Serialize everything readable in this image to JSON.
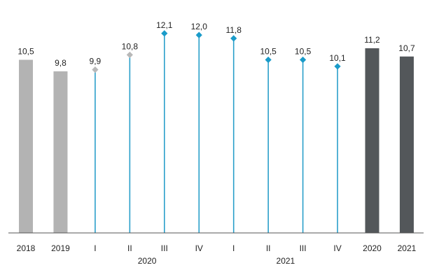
{
  "chart_data": {
    "type": "bar",
    "categories": [
      "2018",
      "2019",
      "I",
      "II",
      "III",
      "IV",
      "I",
      "II",
      "III",
      "IV",
      "2020",
      "2021"
    ],
    "values": [
      10.5,
      9.8,
      9.9,
      10.8,
      12.1,
      12.0,
      11.8,
      10.5,
      10.5,
      10.1,
      11.2,
      10.7
    ],
    "value_labels": [
      "10,5",
      "9,8",
      "9,9",
      "10,8",
      "12,1",
      "12,0",
      "11,8",
      "10,5",
      "10,5",
      "10,1",
      "11,2",
      "10,7"
    ],
    "mark_styles": [
      "bar",
      "bar",
      "lollipop",
      "lollipop",
      "lollipop",
      "lollipop",
      "lollipop",
      "lollipop",
      "lollipop",
      "lollipop",
      "bar",
      "bar"
    ],
    "group_labels": [
      {
        "label": "2020",
        "from_index": 2,
        "to_index": 5
      },
      {
        "label": "2021",
        "from_index": 6,
        "to_index": 9
      }
    ],
    "ylim": [
      0,
      12.6
    ],
    "grid": false,
    "colors": {
      "bar_light": "#b3b3b3",
      "bar_dark": "#53575a",
      "stem": "#2a9fca",
      "marker_teal": "#1a9bc9",
      "marker_grey": "#b8b8b8",
      "axis": "#555555"
    },
    "mark_colors": [
      "#b3b3b3",
      "#b3b3b3",
      "#b8b8b8",
      "#b8b8b8",
      "#1a9bc9",
      "#1a9bc9",
      "#1a9bc9",
      "#1a9bc9",
      "#1a9bc9",
      "#1a9bc9",
      "#53575a",
      "#53575a"
    ]
  }
}
